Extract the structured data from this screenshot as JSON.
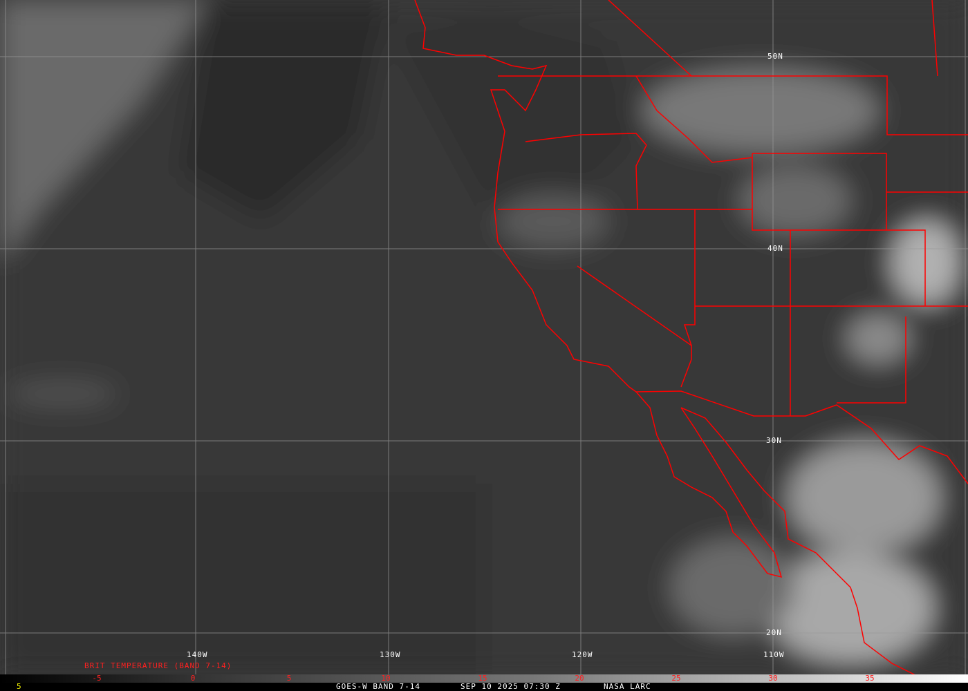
{
  "map": {
    "title_legend": "BRIT TEMPERATURE (BAND 7-14)",
    "footer": {
      "left_value": "5",
      "satellite": "GOES-W BAND 7-14",
      "datetime": "SEP 10 2025 07:30 Z",
      "source": "NASA LARC"
    },
    "longitude_labels": [
      "140W",
      "130W",
      "120W",
      "110W"
    ],
    "latitude_labels": [
      "50N",
      "40N",
      "30N",
      "20N"
    ],
    "colorbar_ticks": [
      "-5",
      "0",
      "5",
      "10",
      "15",
      "20",
      "25",
      "30",
      "35"
    ],
    "colors": {
      "borders": "#ff0000",
      "legend_text": "#ff2020",
      "label_text": "#ffffff",
      "footer_value": "#ffff00"
    }
  }
}
